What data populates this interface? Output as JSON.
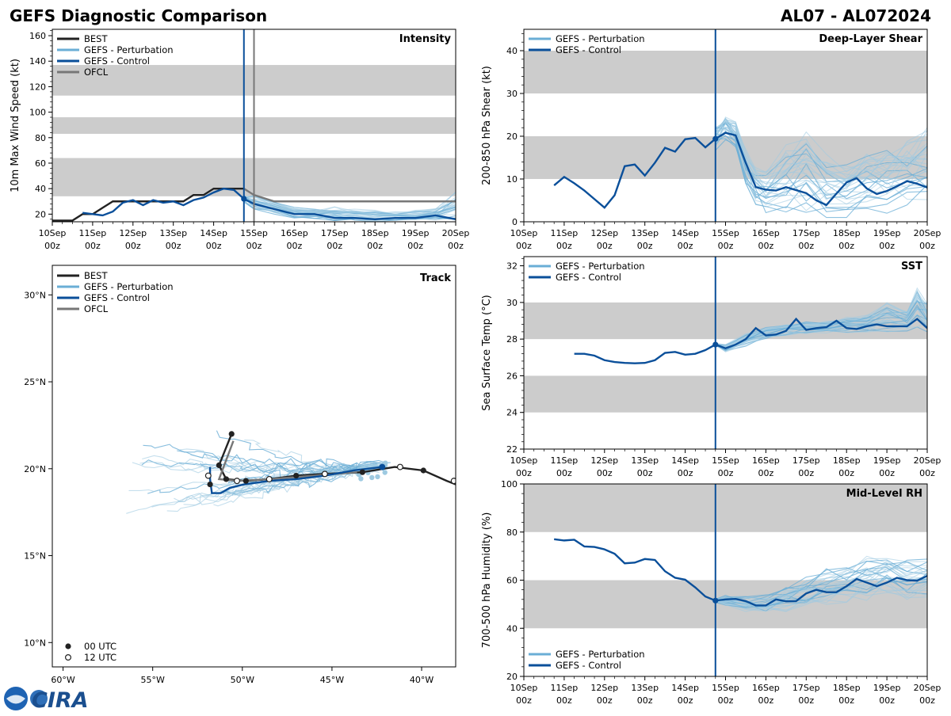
{
  "title_left": "GEFS Diagnostic Comparison",
  "title_right": "AL07 - AL072024",
  "logo_text": "CIRA",
  "colors": {
    "best": "#222222",
    "perturbation": "#6aaed6",
    "perturbation_light": "#9ecae1",
    "control": "#0a4f9a",
    "ofcl": "#777777",
    "band": "#cccccc"
  },
  "time_axis": {
    "labels": [
      [
        "10Sep",
        "00z"
      ],
      [
        "11Sep",
        "00z"
      ],
      [
        "12Sep",
        "00z"
      ],
      [
        "13Sep",
        "00z"
      ],
      [
        "14Sep",
        "00z"
      ],
      [
        "15Sep",
        "00z"
      ],
      [
        "16Sep",
        "00z"
      ],
      [
        "17Sep",
        "00z"
      ],
      [
        "18Sep",
        "00z"
      ],
      [
        "19Sep",
        "00z"
      ],
      [
        "20Sep",
        "00z"
      ]
    ],
    "range": [
      0,
      10
    ],
    "init_time": 4.75
  },
  "chart_data": [
    {
      "id": "intensity",
      "type": "line",
      "title": "Intensity",
      "ylabel": "10m Max Wind Speed (kt)",
      "ylim": [
        14,
        165
      ],
      "yticks": [
        20,
        40,
        60,
        80,
        100,
        120,
        140,
        160
      ],
      "bands": [
        [
          34,
          64
        ],
        [
          83,
          96
        ],
        [
          113,
          137
        ]
      ],
      "legend": [
        "BEST",
        "GEFS - Perturbation",
        "GEFS - Control",
        "OFCL"
      ],
      "ofcl_vline": 5.0,
      "best": {
        "t": [
          0,
          0.5,
          0.75,
          1,
          1.25,
          1.5,
          1.75,
          2,
          2.25,
          2.5,
          2.75,
          3,
          3.25,
          3.5,
          3.75,
          4,
          4.25,
          4.5,
          4.75
        ],
        "v": [
          15,
          15,
          20,
          20,
          25,
          30,
          30,
          30,
          30,
          30,
          30,
          30,
          30,
          35,
          35,
          40,
          40,
          40,
          40
        ]
      },
      "control": {
        "t": [
          0.75,
          1,
          1.25,
          1.5,
          1.75,
          2,
          2.25,
          2.5,
          2.75,
          3,
          3.25,
          3.5,
          3.75,
          4,
          4.25,
          4.5,
          4.75,
          5,
          5.5,
          6,
          6.5,
          7,
          7.5,
          8,
          8.5,
          9,
          9.5,
          10
        ],
        "v": [
          21,
          20,
          19,
          22,
          29,
          31,
          27,
          31,
          29,
          30,
          27,
          31,
          33,
          37,
          40,
          39,
          32,
          28,
          24,
          20,
          20,
          17,
          17,
          16,
          17,
          17,
          19,
          16
        ]
      },
      "ofcl": {
        "t": [
          4.75,
          5,
          5.5,
          6,
          7,
          8,
          9,
          10
        ],
        "v": [
          40,
          35,
          30,
          30,
          30,
          30,
          30,
          30
        ]
      },
      "perturbation_range": {
        "t": [
          4.75,
          5,
          5.5,
          6,
          6.5,
          7,
          7.5,
          8,
          8.5,
          9,
          9.5,
          10
        ],
        "low": [
          28,
          24,
          20,
          17,
          16,
          15,
          15,
          14,
          15,
          15,
          15,
          15
        ],
        "high": [
          38,
          35,
          30,
          26,
          25,
          26,
          24,
          23,
          22,
          23,
          25,
          38
        ]
      },
      "init_point": 32
    },
    {
      "id": "shear",
      "type": "line",
      "title": "Deep-Layer Shear",
      "ylabel": "200-850 hPa Shear (kt)",
      "ylim": [
        0,
        45
      ],
      "yticks": [
        0,
        10,
        20,
        30,
        40
      ],
      "bands": [
        [
          10,
          20
        ],
        [
          30,
          40
        ]
      ],
      "legend": [
        "GEFS - Perturbation",
        "GEFS - Control"
      ],
      "control": {
        "t": [
          0.75,
          1,
          1.25,
          1.5,
          1.75,
          2,
          2.25,
          2.5,
          2.75,
          3,
          3.25,
          3.5,
          3.75,
          4,
          4.25,
          4.5,
          4.75,
          5,
          5.25,
          5.5,
          5.75,
          6,
          6.25,
          6.5,
          6.75,
          7,
          7.25,
          7.5,
          7.75,
          8,
          8.25,
          8.5,
          8.75,
          9,
          9.25,
          9.5,
          9.75,
          10
        ],
        "v": [
          8.5,
          10.5,
          9,
          7.3,
          5.3,
          3.3,
          6.2,
          13,
          13.4,
          10.8,
          13.8,
          17.3,
          16.4,
          19.3,
          19.6,
          17.4,
          19.4,
          20.8,
          20.2,
          13.8,
          8.1,
          7.5,
          7.3,
          8.1,
          7.4,
          6.7,
          5,
          3.9,
          6.6,
          9.2,
          10.2,
          7.8,
          6.5,
          7.2,
          8.3,
          9.5,
          8.9,
          8
        ]
      },
      "perturbation_range": {
        "t": [
          4.75,
          5,
          5.25,
          5.5,
          5.75,
          6,
          6.5,
          7,
          7.5,
          8,
          8.5,
          9,
          9.5,
          10
        ],
        "low": [
          15,
          18,
          17,
          8,
          4,
          2,
          2,
          1,
          1,
          1,
          2,
          2,
          3,
          5
        ],
        "high": [
          24,
          25,
          24,
          17,
          13,
          12,
          18,
          21,
          16,
          15,
          17,
          19,
          20,
          22
        ]
      },
      "init_point": 19.4
    },
    {
      "id": "sst",
      "type": "line",
      "title": "SST",
      "ylabel": "Sea Surface Temp (°C)",
      "ylim": [
        22,
        32.5
      ],
      "yticks": [
        22,
        24,
        26,
        28,
        30,
        32
      ],
      "bands": [
        [
          24,
          26
        ],
        [
          28,
          30
        ]
      ],
      "legend": [
        "GEFS - Perturbation",
        "GEFS - Control"
      ],
      "control": {
        "t": [
          1.25,
          1.5,
          1.75,
          2,
          2.25,
          2.5,
          2.75,
          3,
          3.25,
          3.5,
          3.75,
          4,
          4.25,
          4.5,
          4.75,
          5,
          5.25,
          5.5,
          5.75,
          6,
          6.25,
          6.5,
          6.75,
          7,
          7.25,
          7.5,
          7.75,
          8,
          8.25,
          8.5,
          8.75,
          9,
          9.25,
          9.5,
          9.75,
          10
        ],
        "v": [
          27.2,
          27.2,
          27.1,
          26.85,
          26.75,
          26.7,
          26.68,
          26.7,
          26.85,
          27.25,
          27.3,
          27.15,
          27.2,
          27.4,
          27.7,
          27.5,
          27.7,
          28.0,
          28.6,
          28.2,
          28.25,
          28.45,
          29.1,
          28.5,
          28.6,
          28.65,
          29.0,
          28.6,
          28.55,
          28.7,
          28.8,
          28.7,
          28.7,
          28.7,
          29.1,
          28.6
        ]
      },
      "perturbation_range": {
        "t": [
          4.75,
          5,
          5.5,
          6,
          6.5,
          7,
          7.5,
          8,
          8.5,
          9,
          9.5,
          9.75,
          10
        ],
        "low": [
          27.5,
          27.3,
          27.6,
          28.0,
          28.2,
          28.3,
          28.3,
          28.3,
          28.4,
          28.4,
          28.4,
          28.5,
          28.4
        ],
        "high": [
          27.8,
          27.7,
          28.3,
          28.7,
          28.8,
          29.0,
          29.0,
          29.2,
          29.3,
          30.0,
          29.5,
          30.8,
          30.0
        ]
      },
      "init_point": 27.7
    },
    {
      "id": "rh",
      "type": "line",
      "title": "Mid-Level RH",
      "ylabel": "700-500 hPa Humidity (%)",
      "ylim": [
        20,
        100
      ],
      "yticks": [
        20,
        40,
        60,
        80,
        100
      ],
      "bands": [
        [
          40,
          60
        ],
        [
          80,
          100
        ]
      ],
      "legend": [
        "GEFS - Perturbation",
        "GEFS - Control"
      ],
      "control": {
        "t": [
          0.75,
          1,
          1.25,
          1.5,
          1.75,
          2,
          2.25,
          2.5,
          2.75,
          3,
          3.25,
          3.5,
          3.75,
          4,
          4.25,
          4.5,
          4.75,
          5,
          5.25,
          5.5,
          5.75,
          6,
          6.25,
          6.5,
          6.75,
          7,
          7.25,
          7.5,
          7.75,
          8,
          8.25,
          8.5,
          8.75,
          9,
          9.25,
          9.5,
          9.75,
          10
        ],
        "v": [
          77,
          76.5,
          76.8,
          74,
          73.8,
          72.8,
          71,
          67,
          67.3,
          68.8,
          68.4,
          63.7,
          61,
          60.2,
          57,
          53.2,
          51.5,
          52,
          52.2,
          51.3,
          49.5,
          49.5,
          52,
          51.2,
          51.3,
          54.5,
          56,
          55,
          55,
          57.5,
          60.5,
          59,
          57.5,
          59,
          61,
          60,
          59.8,
          61.8
        ]
      },
      "perturbation_range": {
        "t": [
          4.75,
          5,
          5.5,
          6,
          6.5,
          7,
          7.5,
          8,
          8.5,
          9,
          9.5,
          10
        ],
        "low": [
          50,
          49,
          47,
          46,
          47,
          48,
          49,
          50,
          51,
          52,
          52,
          53
        ],
        "high": [
          53,
          54,
          54,
          54,
          58,
          62,
          65,
          67,
          71,
          72,
          70,
          70
        ]
      },
      "init_point": 51.5
    },
    {
      "id": "track",
      "type": "scatter",
      "title": "Track",
      "xlim": [
        -60.6,
        -38.1
      ],
      "ylim": [
        8.6,
        31.7
      ],
      "xticks": [
        {
          "v": -60,
          "label": "60°W"
        },
        {
          "v": -55,
          "label": "55°W"
        },
        {
          "v": -50,
          "label": "50°W"
        },
        {
          "v": -45,
          "label": "45°W"
        },
        {
          "v": -40,
          "label": "40°W"
        }
      ],
      "yticks": [
        {
          "v": 10,
          "label": "10°N"
        },
        {
          "v": 15,
          "label": "15°N"
        },
        {
          "v": 20,
          "label": "20°N"
        },
        {
          "v": 25,
          "label": "25°N"
        },
        {
          "v": 30,
          "label": "30°N"
        }
      ],
      "legend": [
        "BEST",
        "GEFS - Perturbation",
        "GEFS - Control",
        "OFCL"
      ],
      "marker_legend": [
        "00 UTC",
        "12 UTC"
      ],
      "best": [
        [
          -38.1,
          19.1
        ],
        [
          -38.6,
          19.3
        ],
        [
          -39.9,
          19.9
        ],
        [
          -41.5,
          20.1
        ],
        [
          -43.3,
          19.8
        ],
        [
          -45.4,
          19.7
        ],
        [
          -47.0,
          19.6
        ],
        [
          -48.5,
          19.4
        ],
        [
          -49.8,
          19.3
        ],
        [
          -50.9,
          19.4
        ],
        [
          -51.3,
          20.2
        ],
        [
          -50.6,
          22.0
        ]
      ],
      "ofcl": [
        [
          -43.6,
          19.8
        ],
        [
          -46.0,
          19.6
        ],
        [
          -48.5,
          19.4
        ],
        [
          -50.3,
          19.3
        ],
        [
          -51.3,
          19.4
        ],
        [
          -50.9,
          20.5
        ],
        [
          -50.5,
          21.6
        ]
      ],
      "control": [
        [
          -42.2,
          20.1
        ],
        [
          -43.8,
          19.9
        ],
        [
          -45.4,
          19.6
        ],
        [
          -47.0,
          19.4
        ],
        [
          -48.5,
          19.3
        ],
        [
          -49.9,
          19.1
        ],
        [
          -50.7,
          18.9
        ],
        [
          -51.2,
          18.6
        ],
        [
          -51.7,
          18.6
        ],
        [
          -51.8,
          19.4
        ],
        [
          -51.8,
          20.1
        ]
      ],
      "best_markers": [
        [
          -39.9,
          19.9,
          "00"
        ],
        [
          -38.2,
          19.3,
          "12"
        ],
        [
          -41.2,
          20.1,
          "12"
        ],
        [
          -43.3,
          19.8,
          "00"
        ],
        [
          -45.4,
          19.7,
          "12"
        ],
        [
          -47.0,
          19.6,
          "00"
        ],
        [
          -48.5,
          19.4,
          "12"
        ],
        [
          -49.8,
          19.3,
          "00"
        ],
        [
          -50.3,
          19.3,
          "12"
        ],
        [
          -50.9,
          19.4,
          "00"
        ],
        [
          -51.3,
          20.2,
          "00"
        ],
        [
          -50.6,
          22.0,
          "00"
        ],
        [
          -51.8,
          19.1,
          "00"
        ],
        [
          -51.9,
          19.6,
          "12"
        ]
      ]
    }
  ]
}
